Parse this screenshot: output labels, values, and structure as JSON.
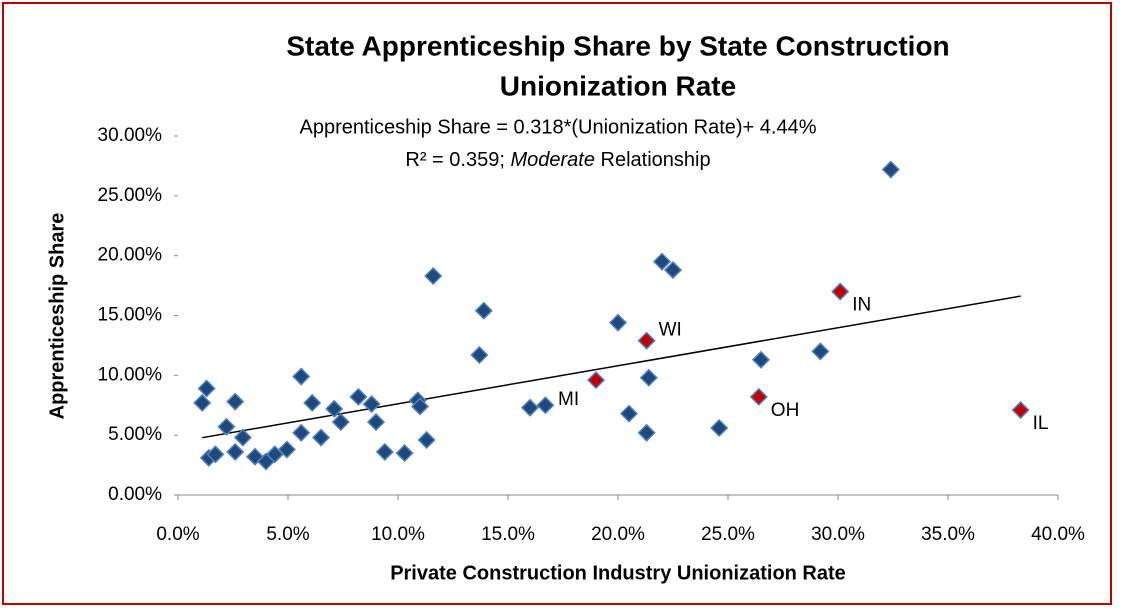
{
  "chart_data": {
    "type": "scatter",
    "title": [
      "State Apprenticeship Share by State Construction",
      "Unionization Rate"
    ],
    "annotations": [
      "Apprenticeship Share = 0.318*(Unionization Rate)+ 4.44%",
      "R² = 0.359;",
      "Moderate",
      "Relationship"
    ],
    "x_label": "Private Construction Industry Unionization Rate",
    "y_label": "Apprenticeship Share",
    "color": "#1f497d",
    "x": [
      1.1,
      1.3,
      1.4,
      1.7,
      2.2,
      2.6,
      2.6,
      2.95,
      3.5,
      4.0,
      4.4,
      4.95,
      5.6,
      5.6,
      6.1,
      6.5,
      7.1,
      7.4,
      8.2,
      8.8,
      9.0,
      9.4,
      10.3,
      10.9,
      11.0,
      11.3,
      11.6,
      13.7,
      13.9,
      16.0,
      16.7,
      20.0,
      20.5,
      21.3,
      21.4,
      22.0,
      22.5,
      24.6,
      26.5,
      29.2,
      32.4
    ],
    "values": [
      7.7,
      8.9,
      3.1,
      3.4,
      5.7,
      7.8,
      3.6,
      4.8,
      3.2,
      2.8,
      3.4,
      3.8,
      9.9,
      5.2,
      7.7,
      4.8,
      7.2,
      6.1,
      8.2,
      7.6,
      6.1,
      3.6,
      3.5,
      7.9,
      7.4,
      4.6,
      18.3,
      11.7,
      15.4,
      7.3,
      7.5,
      14.4,
      6.8,
      5.2,
      9.8,
      19.5,
      18.8,
      5.6,
      11.3,
      12.0,
      27.2
    ],
    "highlight": {
      "color": "#c00000",
      "x": [
        19.0,
        21.3,
        26.4,
        30.1,
        38.3
      ],
      "values": [
        9.6,
        12.9,
        8.2,
        17.0,
        7.1
      ],
      "labels": [
        "MI",
        "WI",
        "OH",
        "IN",
        "IL"
      ]
    },
    "trendline": {
      "slope": 0.318,
      "intercept": 4.44
    },
    "xlim": [
      0,
      40
    ],
    "ylim": [
      0,
      30
    ],
    "xticks": [
      {
        "value": 0,
        "label": "0.0%"
      },
      {
        "value": 5,
        "label": "5.0%"
      },
      {
        "value": 10,
        "label": "10.0%"
      },
      {
        "value": 15,
        "label": "15.0%"
      },
      {
        "value": 20,
        "label": "20.0%"
      },
      {
        "value": 25,
        "label": "25.0%"
      },
      {
        "value": 30,
        "label": "30.0%"
      },
      {
        "value": 35,
        "label": "35.0%"
      },
      {
        "value": 40,
        "label": "40.0%"
      }
    ],
    "yticks": [
      {
        "value": 0,
        "label": "0.00%"
      },
      {
        "value": 5,
        "label": "5.00%"
      },
      {
        "value": 10,
        "label": "10.00%"
      },
      {
        "value": 15,
        "label": "15.00%"
      },
      {
        "value": 20,
        "label": "20.00%"
      },
      {
        "value": 25,
        "label": "25.00%"
      },
      {
        "value": 30,
        "label": "30.00%"
      }
    ],
    "grid": false
  }
}
